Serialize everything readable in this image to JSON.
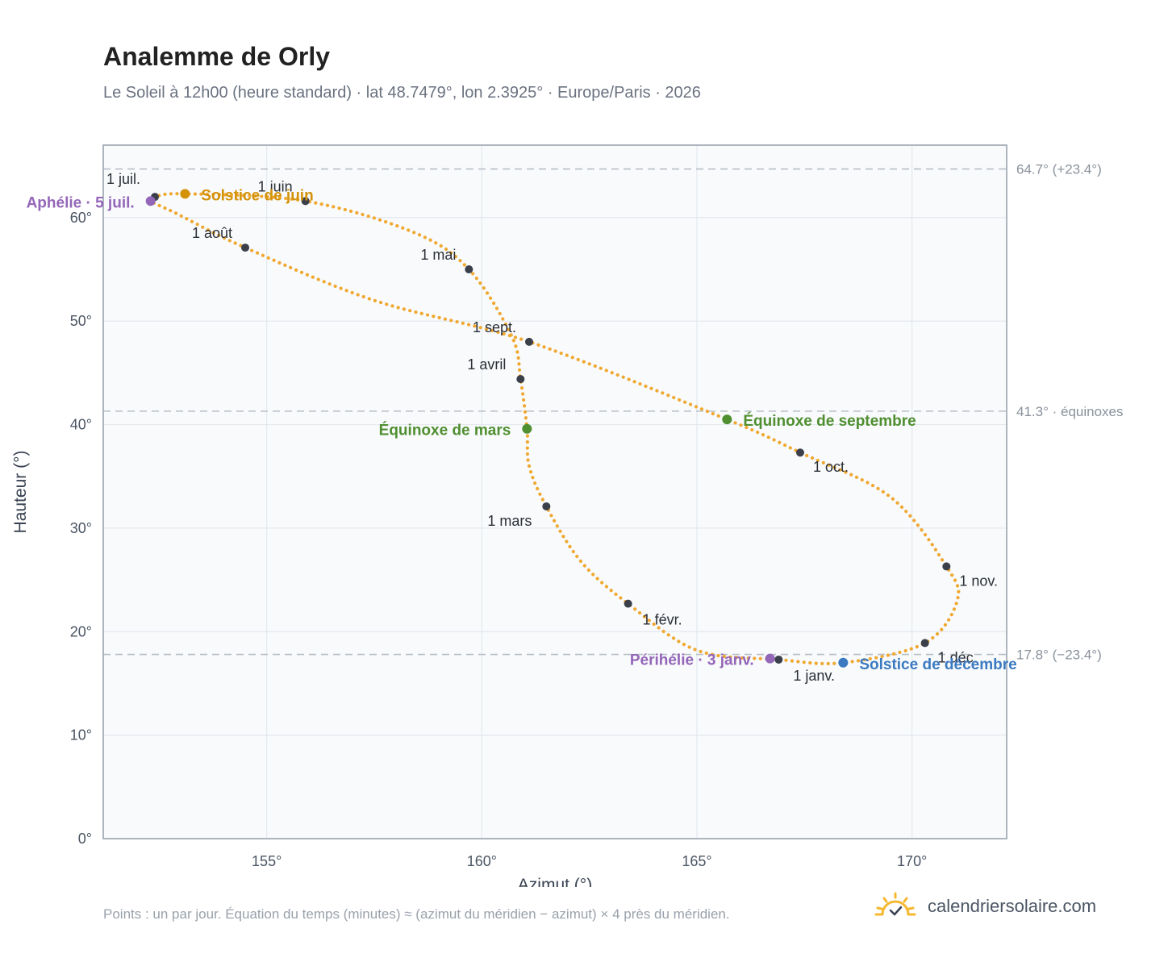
{
  "header": {
    "title": "Analemme de Orly",
    "subtitle": "Le Soleil à 12h00 (heure standard) · lat 48.7479°, lon 2.3925° · Europe/Paris · 2026"
  },
  "footer": {
    "note": "Points : un par jour. Équation du temps (minutes) ≈ (azimut du méridien − azimut) × 4 près du méridien.",
    "brand": "calendriersolaire.com",
    "brand_icon": "sun-logo-icon"
  },
  "colors": {
    "curve": "#f0a830",
    "month_dot": "#3a3f4a",
    "solstice_june": "#d4920a",
    "solstice_dec": "#3b7ac0",
    "equinox": "#4f8f2f",
    "aphelion_perihelion": "#9466b8",
    "reference_line": "#b8bec7",
    "plot_bg": "#f8fafc",
    "grid": "#e3e8ee"
  },
  "chart_data": {
    "type": "scatter",
    "title": "Analemme de Orly",
    "xlabel": "Azimut (°)",
    "ylabel": "Hauteur (°)",
    "xlim": [
      151.2,
      172.2
    ],
    "ylim": [
      0,
      67
    ],
    "xticks": [
      155,
      160,
      165,
      170
    ],
    "xtick_labels": [
      "155°",
      "160°",
      "165°",
      "170°"
    ],
    "yticks": [
      0,
      10,
      20,
      30,
      40,
      50,
      60
    ],
    "ytick_labels": [
      "0°",
      "10°",
      "20°",
      "30°",
      "40°",
      "50°",
      "60°"
    ],
    "grid": true,
    "reference_lines": [
      {
        "y": 64.7,
        "label": "64.7° (+23.4°)"
      },
      {
        "y": 41.3,
        "label": "41.3° · équinoxes"
      },
      {
        "y": 17.8,
        "label": "17.8° (−23.4°)"
      }
    ],
    "path_points": [
      {
        "x": 166.9,
        "y": 17.3
      },
      {
        "x": 165.0,
        "y": 18.2
      },
      {
        "x": 163.4,
        "y": 22.7
      },
      {
        "x": 162.3,
        "y": 26.8
      },
      {
        "x": 161.5,
        "y": 32.1
      },
      {
        "x": 161.1,
        "y": 36.0
      },
      {
        "x": 161.05,
        "y": 39.6
      },
      {
        "x": 160.9,
        "y": 44.4
      },
      {
        "x": 160.7,
        "y": 48.5
      },
      {
        "x": 159.7,
        "y": 55.0
      },
      {
        "x": 158.4,
        "y": 58.6
      },
      {
        "x": 155.9,
        "y": 61.6
      },
      {
        "x": 153.1,
        "y": 62.3
      },
      {
        "x": 152.4,
        "y": 62.0
      },
      {
        "x": 152.3,
        "y": 61.6
      },
      {
        "x": 152.9,
        "y": 60.4
      },
      {
        "x": 154.5,
        "y": 57.1
      },
      {
        "x": 157.5,
        "y": 52.0
      },
      {
        "x": 161.1,
        "y": 48.0
      },
      {
        "x": 165.7,
        "y": 40.5
      },
      {
        "x": 167.4,
        "y": 37.3
      },
      {
        "x": 169.5,
        "y": 33.0
      },
      {
        "x": 170.8,
        "y": 26.3
      },
      {
        "x": 171.05,
        "y": 23.0
      },
      {
        "x": 170.3,
        "y": 18.9
      },
      {
        "x": 168.4,
        "y": 17.0
      },
      {
        "x": 166.9,
        "y": 17.3
      }
    ],
    "months": [
      {
        "label": "1 janv.",
        "x": 166.9,
        "y": 17.3
      },
      {
        "label": "1 févr.",
        "x": 163.4,
        "y": 22.7
      },
      {
        "label": "1 mars",
        "x": 161.5,
        "y": 32.1
      },
      {
        "label": "1 avril",
        "x": 160.9,
        "y": 44.4
      },
      {
        "label": "1 mai",
        "x": 159.7,
        "y": 55.0
      },
      {
        "label": "1 juin",
        "x": 155.9,
        "y": 61.6
      },
      {
        "label": "1 juil.",
        "x": 152.4,
        "y": 62.0
      },
      {
        "label": "1 août",
        "x": 154.5,
        "y": 57.1
      },
      {
        "label": "1 sept.",
        "x": 161.1,
        "y": 48.0
      },
      {
        "label": "1 oct.",
        "x": 167.4,
        "y": 37.3
      },
      {
        "label": "1 nov.",
        "x": 170.8,
        "y": 26.3
      },
      {
        "label": "1 déc.",
        "x": 170.3,
        "y": 18.9
      }
    ],
    "events": [
      {
        "label": "Solstice de juin",
        "x": 153.1,
        "y": 62.3,
        "color": "#d4920a"
      },
      {
        "label": "Aphélie · 5 juil.",
        "x": 152.3,
        "y": 61.6,
        "color": "#9466b8"
      },
      {
        "label": "Équinoxe de mars",
        "x": 161.05,
        "y": 39.6,
        "color": "#4f8f2f"
      },
      {
        "label": "Équinoxe de septembre",
        "x": 165.7,
        "y": 40.5,
        "color": "#4f8f2f"
      },
      {
        "label": "Périhélie · 3 janv.",
        "x": 166.7,
        "y": 17.4,
        "color": "#9466b8"
      },
      {
        "label": "Solstice de décembre",
        "x": 168.4,
        "y": 17.0,
        "color": "#3b7ac0"
      }
    ]
  }
}
